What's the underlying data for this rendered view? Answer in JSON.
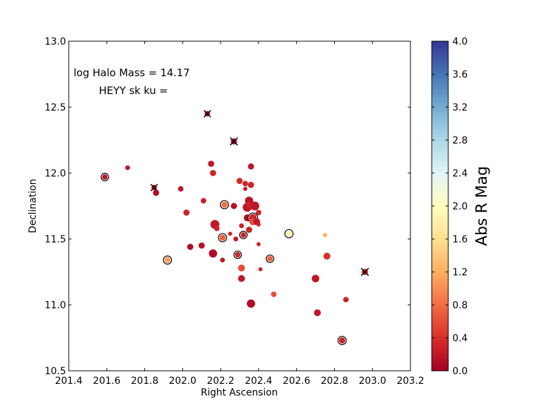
{
  "chart_data": {
    "type": "scatter",
    "xlabel": "Right Ascension",
    "ylabel": "Declination",
    "xlim": [
      201.4,
      203.2
    ],
    "ylim": [
      10.5,
      13.0
    ],
    "xticks": [
      "201.4",
      "201.6",
      "201.8",
      "202.0",
      "202.2",
      "202.4",
      "202.6",
      "202.8",
      "203.0",
      "203.2"
    ],
    "yticks": [
      "10.5",
      "11.0",
      "11.5",
      "12.0",
      "12.5",
      "13.0"
    ],
    "annotations": [
      "log Halo Mass = 14.17",
      "HEYY sk ku ="
    ],
    "colorbar": {
      "label": "Abs R Mag",
      "range": [
        0.0,
        4.0
      ],
      "ticks": [
        "0.0",
        "0.4",
        "0.8",
        "1.2",
        "1.6",
        "2.0",
        "2.4",
        "2.8",
        "3.2",
        "3.6",
        "4.0"
      ],
      "colormap": [
        "#a50026",
        "#d73027",
        "#f46d43",
        "#fdae61",
        "#fee090",
        "#ffffbf",
        "#e0f3f8",
        "#abd9e9",
        "#74add1",
        "#4575b4",
        "#313695"
      ]
    },
    "points": [
      {
        "x": 201.59,
        "y": 11.97,
        "c": 0.2,
        "s": 4,
        "marker": "ring"
      },
      {
        "x": 201.71,
        "y": 12.04,
        "c": 0.2,
        "s": 3.5
      },
      {
        "x": 201.85,
        "y": 11.89,
        "c": 0.2,
        "s": 4,
        "marker": "x"
      },
      {
        "x": 201.86,
        "y": 11.85,
        "c": 0.1,
        "s": 4.5
      },
      {
        "x": 201.92,
        "y": 11.34,
        "c": 1.1,
        "s": 4.5,
        "marker": "ring"
      },
      {
        "x": 201.99,
        "y": 11.88,
        "c": 0.2,
        "s": 4
      },
      {
        "x": 202.02,
        "y": 11.7,
        "c": 0.3,
        "s": 4.5
      },
      {
        "x": 202.04,
        "y": 11.44,
        "c": 0.1,
        "s": 4.5
      },
      {
        "x": 202.1,
        "y": 11.45,
        "c": 0.15,
        "s": 4.5
      },
      {
        "x": 202.11,
        "y": 11.79,
        "c": 0.25,
        "s": 4
      },
      {
        "x": 202.13,
        "y": 12.45,
        "c": 0.1,
        "s": 4,
        "marker": "x"
      },
      {
        "x": 202.15,
        "y": 12.07,
        "c": 0.2,
        "s": 4.5
      },
      {
        "x": 202.16,
        "y": 12.0,
        "c": 0.3,
        "s": 4.5
      },
      {
        "x": 202.16,
        "y": 11.39,
        "c": 0.1,
        "s": 6
      },
      {
        "x": 202.17,
        "y": 11.61,
        "c": 0.2,
        "s": 6.5
      },
      {
        "x": 202.18,
        "y": 11.58,
        "c": 0.3,
        "s": 4
      },
      {
        "x": 202.21,
        "y": 11.51,
        "c": 0.7,
        "s": 4.5,
        "marker": "ring"
      },
      {
        "x": 202.21,
        "y": 11.34,
        "c": 0.2,
        "s": 3.5
      },
      {
        "x": 202.22,
        "y": 11.76,
        "c": 0.8,
        "s": 4.5,
        "marker": "ring"
      },
      {
        "x": 202.25,
        "y": 11.54,
        "c": 0.3,
        "s": 3
      },
      {
        "x": 202.27,
        "y": 12.24,
        "c": 0.1,
        "s": 4.5,
        "marker": "x"
      },
      {
        "x": 202.27,
        "y": 11.75,
        "c": 0.15,
        "s": 4.5
      },
      {
        "x": 202.28,
        "y": 11.5,
        "c": 0.2,
        "s": 3.5
      },
      {
        "x": 202.29,
        "y": 11.38,
        "c": 0.3,
        "s": 4,
        "marker": "ring"
      },
      {
        "x": 202.3,
        "y": 11.94,
        "c": 0.35,
        "s": 4.5
      },
      {
        "x": 202.31,
        "y": 11.28,
        "c": 0.6,
        "s": 5
      },
      {
        "x": 202.31,
        "y": 11.2,
        "c": 0.2,
        "s": 5
      },
      {
        "x": 202.31,
        "y": 11.6,
        "c": 0.25,
        "s": 3.5
      },
      {
        "x": 202.32,
        "y": 11.53,
        "c": 0.3,
        "s": 4,
        "marker": "ring"
      },
      {
        "x": 202.33,
        "y": 11.88,
        "c": 0.2,
        "s": 3
      },
      {
        "x": 202.33,
        "y": 11.92,
        "c": 0.3,
        "s": 4
      },
      {
        "x": 202.34,
        "y": 11.74,
        "c": 0.2,
        "s": 6.5
      },
      {
        "x": 202.34,
        "y": 11.66,
        "c": 0.1,
        "s": 5
      },
      {
        "x": 202.35,
        "y": 11.57,
        "c": 0.3,
        "s": 4.5
      },
      {
        "x": 202.35,
        "y": 11.79,
        "c": 0.15,
        "s": 6
      },
      {
        "x": 202.35,
        "y": 11.76,
        "c": 0.3,
        "s": 4.5
      },
      {
        "x": 202.36,
        "y": 11.91,
        "c": 0.3,
        "s": 4.5
      },
      {
        "x": 202.36,
        "y": 12.05,
        "c": 0.2,
        "s": 4.5
      },
      {
        "x": 202.36,
        "y": 11.01,
        "c": 0.1,
        "s": 6
      },
      {
        "x": 202.37,
        "y": 11.66,
        "c": 0.3,
        "s": 5.5,
        "marker": "ring"
      },
      {
        "x": 202.37,
        "y": 11.63,
        "c": 0.6,
        "s": 5
      },
      {
        "x": 202.38,
        "y": 11.75,
        "c": 0.2,
        "s": 6.5
      },
      {
        "x": 202.39,
        "y": 11.63,
        "c": 0.2,
        "s": 5
      },
      {
        "x": 202.4,
        "y": 11.7,
        "c": 0.3,
        "s": 4
      },
      {
        "x": 202.4,
        "y": 11.61,
        "c": 0.3,
        "s": 3
      },
      {
        "x": 202.4,
        "y": 11.46,
        "c": 0.3,
        "s": 3
      },
      {
        "x": 202.41,
        "y": 11.27,
        "c": 0.3,
        "s": 3
      },
      {
        "x": 202.46,
        "y": 11.35,
        "c": 0.7,
        "s": 4,
        "marker": "ring"
      },
      {
        "x": 202.48,
        "y": 11.08,
        "c": 0.6,
        "s": 4
      },
      {
        "x": 202.56,
        "y": 11.54,
        "c": 1.8,
        "s": 4.5,
        "marker": "ring"
      },
      {
        "x": 202.7,
        "y": 11.2,
        "c": 0.2,
        "s": 5.5
      },
      {
        "x": 202.71,
        "y": 10.94,
        "c": 0.2,
        "s": 5
      },
      {
        "x": 202.75,
        "y": 11.53,
        "c": 1.2,
        "s": 3
      },
      {
        "x": 202.76,
        "y": 11.37,
        "c": 0.4,
        "s": 5
      },
      {
        "x": 202.84,
        "y": 10.73,
        "c": 0.3,
        "s": 4.5,
        "marker": "ring"
      },
      {
        "x": 202.86,
        "y": 11.04,
        "c": 0.3,
        "s": 4
      },
      {
        "x": 202.96,
        "y": 11.25,
        "c": 0.2,
        "s": 4.5,
        "marker": "x"
      }
    ]
  }
}
